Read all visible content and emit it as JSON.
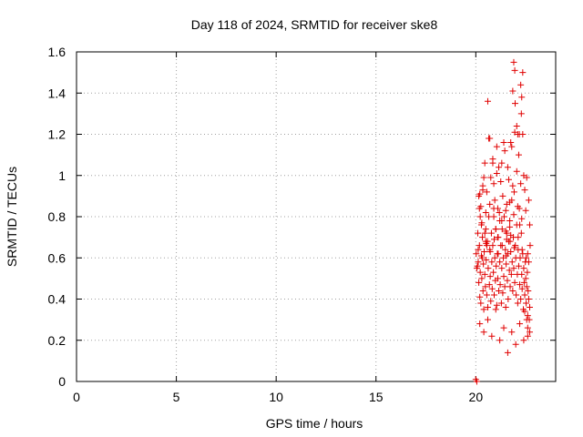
{
  "chart_data": {
    "type": "scatter",
    "title": "Day 118 of 2024, SRMTID for receiver ske8",
    "xlabel": "GPS time / hours",
    "ylabel": "SRMTID / TECUs",
    "xlim": [
      0,
      24
    ],
    "ylim": [
      0,
      1.6
    ],
    "grid": true,
    "marker": "+",
    "color": "#e00000",
    "xticks": [
      0,
      5,
      10,
      15,
      20
    ],
    "yticks": [
      0,
      0.2,
      0.4,
      0.6,
      0.8,
      1,
      1.2,
      1.4,
      1.6
    ],
    "xtick_labels": [
      "0",
      "5",
      "10",
      "15",
      "20"
    ],
    "ytick_labels": [
      "0",
      "0.2",
      "0.4",
      "0.6",
      "0.8",
      "1",
      "1.2",
      "1.4",
      "1.6"
    ],
    "series": [
      {
        "name": "SRMTID",
        "x": [
          20.0,
          20.02,
          20.05,
          20.1,
          20.12,
          20.15,
          20.18,
          20.2,
          20.22,
          20.25,
          20.28,
          20.3,
          20.33,
          20.36,
          20.38,
          20.4,
          20.42,
          20.45,
          20.48,
          20.5,
          20.52,
          20.55,
          20.58,
          20.6,
          20.62,
          20.65,
          20.68,
          20.7,
          20.72,
          20.75,
          20.78,
          20.8,
          20.82,
          20.85,
          20.88,
          20.9,
          20.92,
          20.95,
          20.98,
          21.0,
          21.02,
          21.05,
          21.08,
          21.1,
          21.12,
          21.15,
          21.18,
          21.2,
          21.22,
          21.25,
          21.28,
          21.3,
          21.32,
          21.35,
          21.38,
          21.4,
          21.42,
          21.45,
          21.48,
          21.5,
          21.52,
          21.55,
          21.58,
          21.6,
          21.62,
          21.65,
          21.68,
          21.7,
          21.72,
          21.75,
          21.78,
          21.8,
          21.82,
          21.85,
          21.88,
          21.9,
          21.92,
          21.95,
          21.98,
          22.0,
          22.02,
          22.05,
          22.08,
          22.1,
          22.12,
          22.15,
          22.18,
          22.2,
          22.22,
          22.25,
          22.28,
          22.3,
          22.32,
          22.35,
          22.38,
          22.4,
          22.42,
          22.45,
          22.48,
          22.5,
          22.52,
          22.55,
          22.58,
          22.6,
          22.62,
          22.65,
          22.68,
          22.7,
          20.15,
          20.25,
          20.35,
          20.45,
          20.55,
          20.65,
          20.75,
          20.85,
          20.95,
          21.05,
          21.15,
          21.25,
          21.35,
          21.45,
          21.55,
          21.65,
          21.75,
          21.85,
          21.95,
          22.05,
          22.15,
          22.25,
          22.35,
          22.45,
          22.55,
          22.65,
          20.2,
          20.4,
          20.6,
          20.8,
          21.0,
          21.2,
          21.4,
          21.6,
          21.8,
          22.0,
          22.2,
          22.4,
          22.6,
          20.3,
          20.5,
          20.7,
          20.9,
          21.1,
          21.3,
          21.5,
          21.7,
          21.9,
          22.1,
          22.3,
          22.5,
          22.7,
          20.12,
          20.32,
          20.52,
          20.72,
          20.92,
          21.12,
          21.32,
          21.52,
          21.72,
          21.92,
          22.12,
          22.32,
          22.52,
          22.72,
          21.85,
          21.9,
          21.95,
          22.25,
          22.3,
          22.35,
          22.28,
          21.97,
          22.05,
          22.18,
          20.6,
          20.7,
          20.85,
          21.05,
          21.4,
          21.8,
          22.1,
          22.4,
          22.6,
          22.65,
          21.6,
          21.3,
          20.9,
          20.4,
          20.35,
          20.2,
          20.18,
          20.22,
          20.28,
          20.45,
          20.5,
          20.55,
          21.0,
          21.1,
          21.2,
          21.5,
          21.55,
          21.7,
          21.75,
          22.2,
          22.45,
          22.55,
          22.6,
          22.7,
          20.05,
          20.08
        ],
        "y": [
          0.01,
          0.62,
          0.55,
          0.72,
          0.58,
          0.48,
          0.66,
          0.41,
          0.53,
          0.38,
          0.61,
          0.5,
          0.7,
          0.44,
          0.57,
          0.35,
          0.63,
          0.52,
          0.46,
          0.74,
          0.59,
          0.42,
          0.68,
          0.36,
          0.55,
          0.8,
          0.47,
          0.64,
          0.51,
          0.39,
          0.72,
          0.58,
          0.45,
          0.66,
          0.53,
          0.84,
          0.42,
          0.6,
          0.49,
          0.74,
          0.56,
          0.37,
          0.62,
          0.5,
          0.7,
          0.44,
          0.82,
          0.58,
          0.47,
          0.66,
          0.38,
          0.55,
          0.74,
          0.43,
          0.6,
          0.51,
          0.8,
          0.46,
          0.64,
          0.36,
          0.57,
          0.72,
          0.49,
          0.62,
          0.4,
          0.68,
          0.54,
          0.78,
          0.46,
          0.63,
          0.52,
          0.88,
          0.58,
          0.44,
          0.7,
          0.55,
          0.92,
          0.48,
          0.66,
          0.6,
          0.42,
          0.76,
          0.52,
          0.38,
          0.64,
          0.56,
          0.84,
          0.47,
          0.6,
          0.4,
          0.72,
          0.52,
          0.45,
          0.62,
          0.35,
          0.55,
          0.48,
          0.42,
          0.58,
          0.5,
          0.38,
          0.46,
          0.53,
          0.32,
          0.44,
          0.4,
          0.3,
          0.36,
          0.9,
          0.85,
          0.95,
          1.06,
          0.92,
          1.18,
          0.99,
          1.08,
          0.88,
          1.14,
          1.04,
          0.97,
          0.9,
          1.12,
          0.86,
          0.98,
          1.16,
          0.95,
          1.21,
          1.02,
          1.1,
          0.96,
          1.2,
          0.93,
          0.99,
          0.88,
          0.28,
          0.24,
          0.3,
          0.22,
          0.35,
          0.2,
          0.26,
          0.14,
          0.24,
          0.18,
          0.28,
          0.2,
          0.22,
          0.77,
          0.82,
          0.86,
          0.8,
          0.84,
          0.78,
          0.83,
          0.87,
          0.81,
          0.85,
          0.79,
          0.83,
          0.76,
          0.64,
          0.6,
          0.67,
          0.63,
          0.69,
          0.62,
          0.66,
          0.61,
          0.68,
          0.65,
          0.7,
          0.64,
          0.6,
          0.66,
          1.41,
          1.55,
          1.51,
          1.44,
          1.38,
          1.5,
          1.3,
          1.35,
          1.24,
          1.2,
          1.36,
          1.18,
          1.06,
          1.01,
          1.16,
          1.14,
          1.2,
          1.0,
          0.62,
          0.58,
          1.04,
          1.06,
          0.96,
          0.99,
          0.93,
          0.91,
          0.84,
          0.8,
          0.76,
          0.72,
          0.68,
          0.66,
          0.74,
          0.7,
          0.78,
          0.73,
          0.69,
          0.75,
          0.71,
          0.76,
          0.34,
          0.3,
          0.26,
          0.24,
          0.0,
          0.56
        ]
      }
    ]
  }
}
